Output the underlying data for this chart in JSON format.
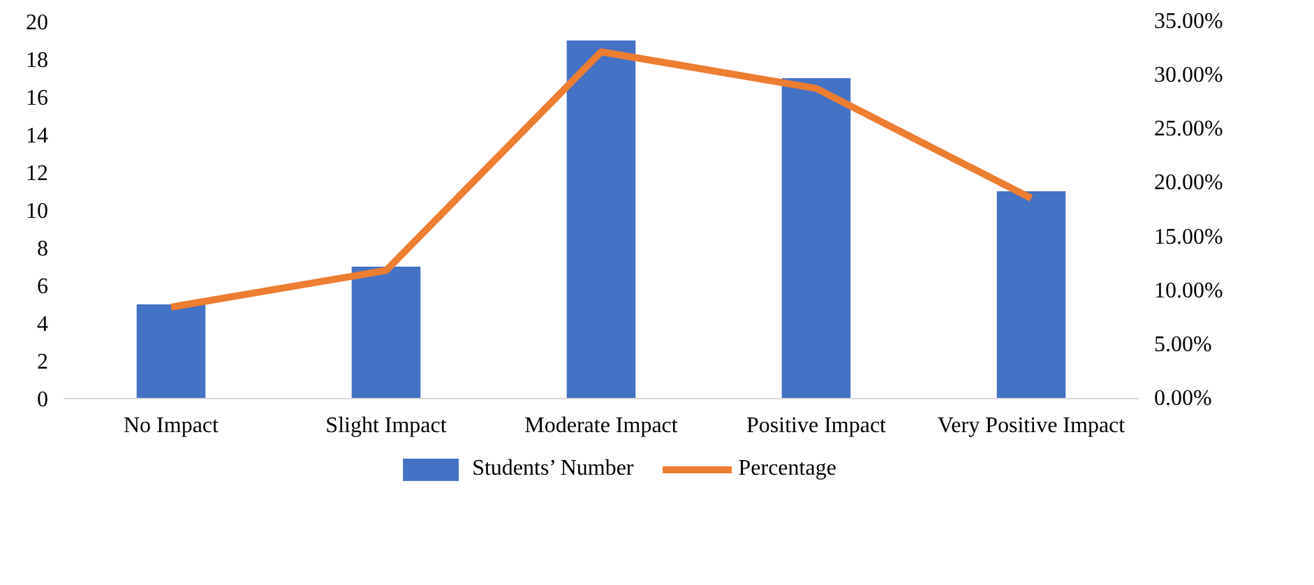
{
  "chart_data": {
    "type": "bar",
    "categories": [
      "No Impact",
      "Slight Impact",
      "Moderate Impact",
      "Positive Impact",
      "Very Positive Impact"
    ],
    "series": [
      {
        "name": "Students’ Number",
        "color": "#4472c4",
        "values": [
          5,
          7,
          19,
          17,
          11
        ]
      },
      {
        "name": "Percentage",
        "type": "line",
        "axis": "y2",
        "color": "#ed7d31",
        "values": [
          8.5,
          11.9,
          32.2,
          28.8,
          18.6
        ]
      }
    ],
    "ylim": [
      0,
      20
    ],
    "yticks": [
      0,
      2,
      4,
      6,
      8,
      10,
      12,
      14,
      16,
      18,
      20
    ],
    "y2lim": [
      0,
      35
    ],
    "y2ticks": [
      {
        "value": 0,
        "label": "0.00%"
      },
      {
        "value": 5,
        "label": "5.00%"
      },
      {
        "value": 10,
        "label": "10.00%"
      },
      {
        "value": 15,
        "label": "15.00%"
      },
      {
        "value": 20,
        "label": "20.00%"
      },
      {
        "value": 25,
        "label": "25.00%"
      },
      {
        "value": 30,
        "label": "30.00%"
      },
      {
        "value": 35,
        "label": "35.00%"
      }
    ],
    "grid": false,
    "legend": "bottom",
    "marker": "none",
    "line_style": "solid"
  }
}
